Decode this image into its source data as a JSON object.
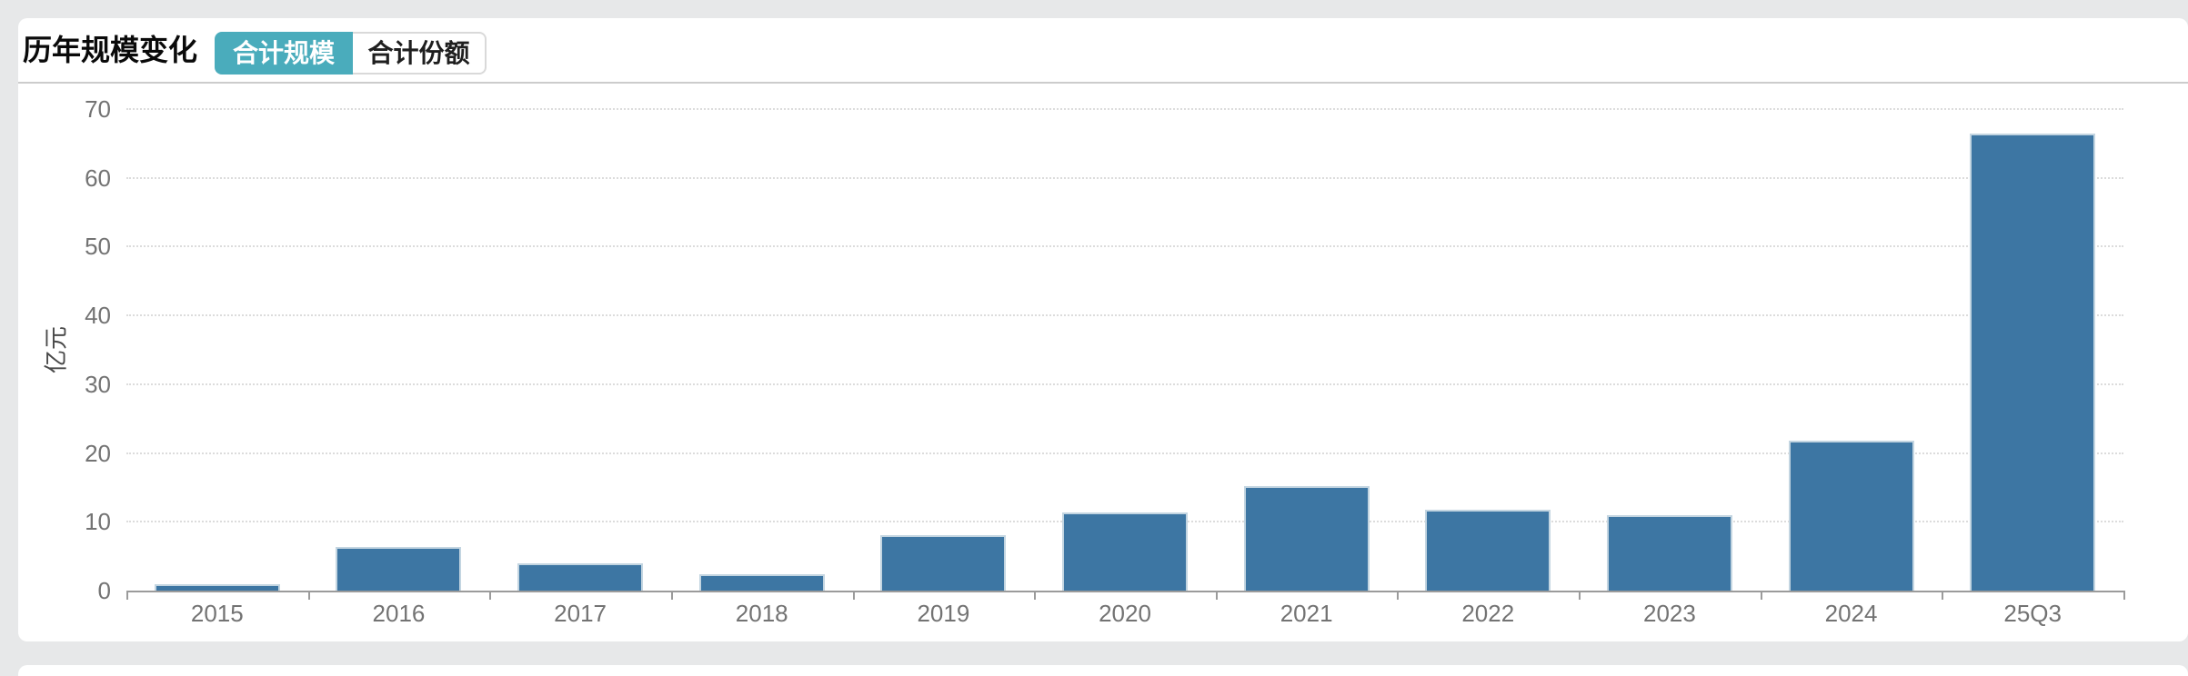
{
  "card": {
    "title": "历年规模变化",
    "tabs": [
      {
        "label": "合计规模",
        "active": true
      },
      {
        "label": "合计份额",
        "active": false
      }
    ],
    "accent_color": "#4aacbc"
  },
  "chart_data": {
    "type": "bar",
    "title": "历年规模变化",
    "categories": [
      "2015",
      "2016",
      "2017",
      "2018",
      "2019",
      "2020",
      "2021",
      "2022",
      "2023",
      "2024",
      "25Q3"
    ],
    "values": [
      0.9,
      6.3,
      3.9,
      2.4,
      8.0,
      11.3,
      15.2,
      11.7,
      10.9,
      21.8,
      66.5
    ],
    "xlabel": "",
    "ylabel": "亿元",
    "ylim": [
      0,
      70
    ],
    "yticks": [
      0,
      10,
      20,
      30,
      40,
      50,
      60,
      70
    ],
    "grid": true,
    "gridline_style": "dotted",
    "legend": null,
    "bar_color": "#3d76a3",
    "bar_border_color": "#c3d5e1",
    "axis_color": "#9b9b9b",
    "tick_label_color": "#737373"
  }
}
